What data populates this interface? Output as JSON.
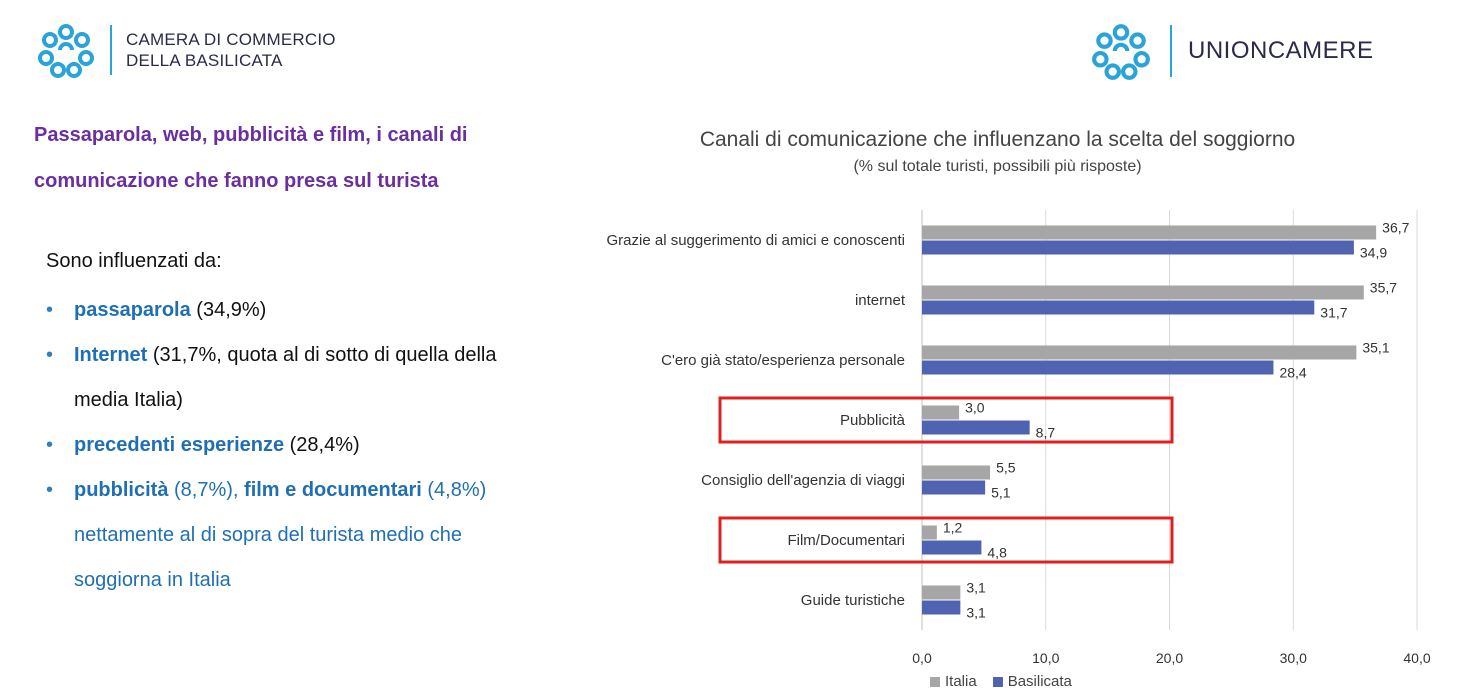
{
  "header": {
    "left_org_line1": "CAMERA DI COMMERCIO",
    "left_org_line2": "DELLA BASILICATA",
    "right_org": "UNIONCAMERE"
  },
  "headline": "Passaparola, web, pubblicità e film, i canali di comunicazione che fanno presa sul turista",
  "intro": "Sono influenzati da:",
  "bullets": [
    {
      "bold": "passaparola",
      "rest": " (34,9%)"
    },
    {
      "bold": "Internet",
      "rest": " (31,7%, quota al di sotto di quella della media Italia)"
    },
    {
      "bold": "precedenti esperienze",
      "rest": " (28,4%)"
    },
    {
      "bold": "pubblicità",
      "mid": " (8,7%), ",
      "bold2": "film e documentari",
      "rest": " (4,8%) nettamente al di sopra del turista medio che soggiorna in Italia"
    }
  ],
  "colors": {
    "italia": "#a6a6a6",
    "basilicata": "#4f63b0",
    "highlight": "#e02020",
    "headline": "#6b2ea0",
    "accent_blue": "#1f6fb5"
  },
  "chart_data": {
    "type": "bar",
    "orientation": "horizontal",
    "title": "Canali di comunicazione che influenzano la scelta del soggiorno",
    "subtitle": "(% sul totale turisti, possibili più risposte)",
    "categories": [
      "Grazie al suggerimento di amici e conoscenti",
      "internet",
      "C'ero già stato/esperienza personale",
      "Pubblicità",
      "Consiglio dell'agenzia di viaggi",
      "Film/Documentari",
      "Guide turistiche"
    ],
    "series": [
      {
        "name": "Italia",
        "values": [
          36.7,
          35.7,
          35.1,
          3.0,
          5.5,
          1.2,
          3.1
        ],
        "labels": [
          "36,7",
          "35,7",
          "35,1",
          "3,0",
          "5,5",
          "1,2",
          "3,1"
        ]
      },
      {
        "name": "Basilicata",
        "values": [
          34.9,
          31.7,
          28.4,
          8.7,
          5.1,
          4.8,
          3.1
        ],
        "labels": [
          "34,9",
          "31,7",
          "28,4",
          "8,7",
          "5,1",
          "4,8",
          "3,1"
        ]
      }
    ],
    "xlim": [
      0,
      40
    ],
    "xticks": [
      "0,0",
      "10,0",
      "20,0",
      "30,0",
      "40,0"
    ],
    "highlighted_categories": [
      "Pubblicità",
      "Film/Documentari"
    ],
    "legend_position": "bottom",
    "grid": true
  }
}
